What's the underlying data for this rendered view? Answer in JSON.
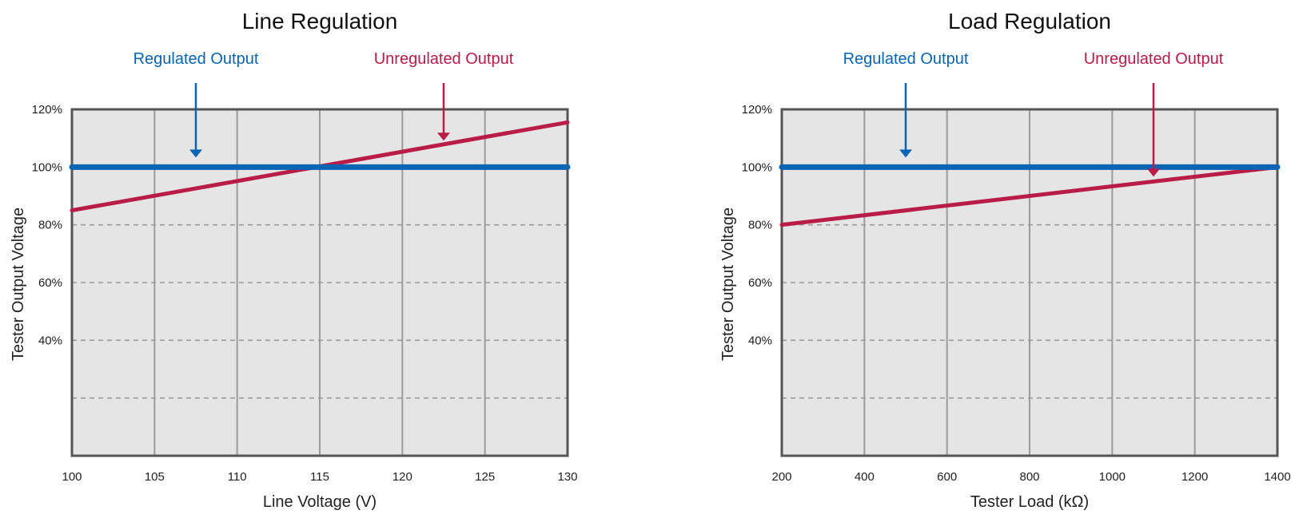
{
  "colors": {
    "regulated": "#0a64b4",
    "unregulated": "#b91c46",
    "plot_bg": "#e5e5e5",
    "frame": "#555555",
    "vgrid": "#9a9a9a",
    "hgrid": "#9a9a9a",
    "text": "#222222"
  },
  "chart_data": [
    {
      "type": "line",
      "title": "Line Regulation",
      "xlabel": "Line Voltage (V)",
      "ylabel": "Tester Output Voltage",
      "xlim": [
        100,
        130
      ],
      "ylim": [
        0,
        120
      ],
      "x_ticks": [
        100,
        105,
        110,
        115,
        120,
        125,
        130
      ],
      "y_ticks": [
        40,
        60,
        80,
        100,
        120
      ],
      "y_tick_labels": [
        "40%",
        "60%",
        "80%",
        "100%",
        "120%"
      ],
      "y_dashed_gridlines": [
        20,
        40,
        60,
        80
      ],
      "grid": true,
      "series": [
        {
          "name": "Regulated Output",
          "x": [
            100,
            130
          ],
          "y": [
            100,
            100
          ]
        },
        {
          "name": "Unregulated Output",
          "x": [
            100,
            130
          ],
          "y": [
            85,
            115.5
          ]
        }
      ],
      "annotations": [
        {
          "series": "Regulated Output",
          "text": "Regulated Output",
          "x": 107.5,
          "y": 100
        },
        {
          "series": "Unregulated Output",
          "text": "Unregulated Output",
          "x": 122.5,
          "y": 107.5
        }
      ]
    },
    {
      "type": "line",
      "title": "Load Regulation",
      "xlabel": "Tester Load (kΩ)",
      "ylabel": "Tester Output Voltage",
      "xlim": [
        200,
        1400
      ],
      "ylim": [
        0,
        120
      ],
      "x_ticks": [
        200,
        400,
        600,
        800,
        1000,
        1200,
        1400
      ],
      "y_ticks": [
        40,
        60,
        80,
        100,
        120
      ],
      "y_tick_labels": [
        "40%",
        "60%",
        "80%",
        "100%",
        "120%"
      ],
      "y_dashed_gridlines": [
        20,
        40,
        60,
        80
      ],
      "grid": true,
      "series": [
        {
          "name": "Regulated Output",
          "x": [
            200,
            1400
          ],
          "y": [
            100,
            100
          ]
        },
        {
          "name": "Unregulated Output",
          "x": [
            200,
            1400
          ],
          "y": [
            80,
            100
          ]
        }
      ],
      "annotations": [
        {
          "series": "Regulated Output",
          "text": "Regulated Output",
          "x": 500,
          "y": 100
        },
        {
          "series": "Unregulated Output",
          "text": "Unregulated Output",
          "x": 1100,
          "y": 95
        }
      ]
    }
  ]
}
